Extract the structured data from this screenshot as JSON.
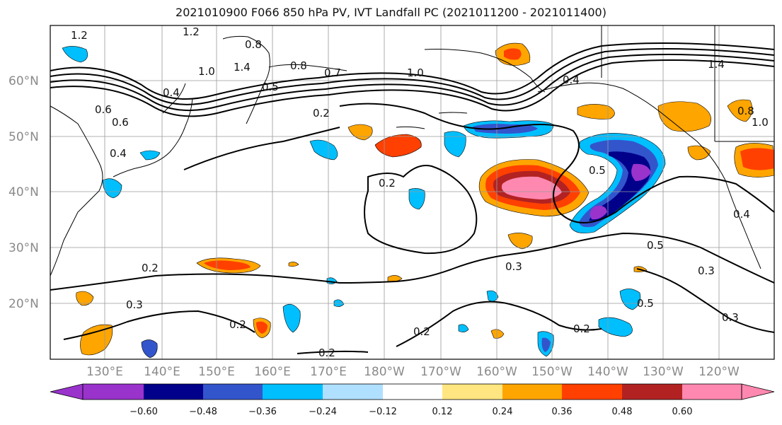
{
  "title": "2021010900 F066 850 hPa PV, IVT Landfall PC (2021011200 - 2021011400)",
  "colors": {
    "c_060_neg": "#9933cc",
    "c_048_neg": "#00008b",
    "c_036_neg": "#3355cc",
    "c_024_neg": "#00bfff",
    "c_012_neg": "#b0e0ff",
    "c_zero": "#ffffff",
    "c_012_pos": "#ffe680",
    "c_024_pos": "#ffa500",
    "c_036_pos": "#ff4000",
    "c_048_pos": "#b22222",
    "c_060_pos": "#ff88b0"
  },
  "lat_labels": [
    "60°N",
    "50°N",
    "40°N",
    "30°N",
    "20°N"
  ],
  "lon_labels": [
    "130°E",
    "140°E",
    "150°E",
    "160°E",
    "170°E",
    "180°W",
    "170°W",
    "160°W",
    "150°W",
    "140°W",
    "130°W",
    "120°W"
  ],
  "colorbar": {
    "ticks": [
      "−0.60",
      "−0.48",
      "−0.36",
      "−0.24",
      "−0.12",
      "0.12",
      "0.24",
      "0.36",
      "0.48",
      "0.60"
    ]
  },
  "contour_labels": [
    "1.2",
    "1.2",
    "0.8",
    "1.4",
    "1.0",
    "0.8",
    "0.7",
    "1.0",
    "0.5",
    "0.4",
    "1.4",
    "0.6",
    "0.6",
    "0.4",
    "0.2",
    "0.2",
    "0.5",
    "0.4",
    "0.8",
    "1.0",
    "0.4",
    "0.2",
    "0.3",
    "0.2",
    "0.2",
    "0.3",
    "0.2",
    "0.5",
    "0.3",
    "0.5",
    "0.3",
    "0.2"
  ]
}
